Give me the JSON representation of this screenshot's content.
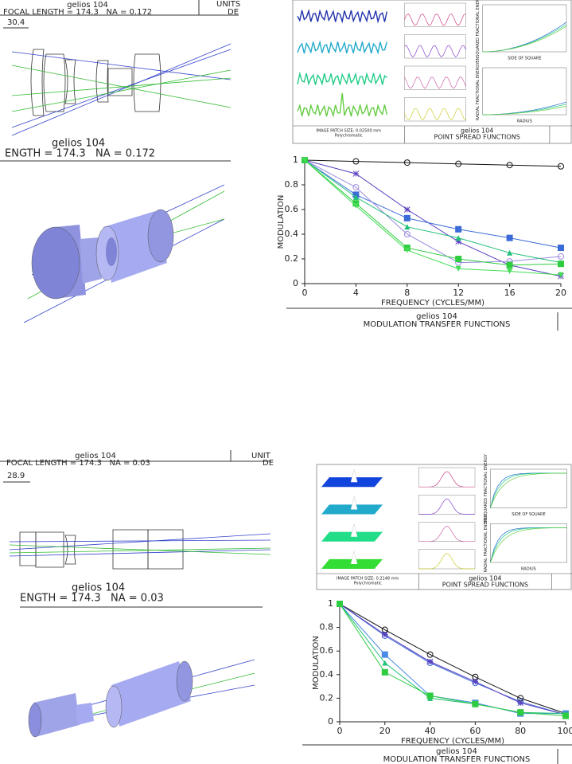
{
  "layouts": [
    {
      "header_title": "gelios 104",
      "header_focal": "FOCAL LENGTH = 174.3   NA = 0.172",
      "units": "UNITS",
      "des": "DE",
      "scale": "30.4",
      "lens_title": "gelios 104",
      "lens_focal": "ENGTH = 174.3   NA = 0.172",
      "psf": {
        "patch": "IMAGE PATCH SIZE: 0.02500 mm",
        "poly": "Polychromatic",
        "title": "gelios 104",
        "name": "POINT SPREAD FUNCTIONS",
        "ens": "ENSQUARED FRACTIONAL ENERGY",
        "side": "SIDE OF SQUARE",
        "rad": "RADIAL FRACTIONAL ENERGY",
        "radius": "RADIUS"
      }
    },
    {
      "header_title": "gelios 104",
      "header_focal": "FOCAL LENGTH = 174.3   NA = 0.03",
      "units": "UNIT",
      "des": "DE",
      "scale": "28.9",
      "lens_title": "gelios 104",
      "lens_focal": "ENGTH = 174.3   NA = 0.03",
      "psf": {
        "patch": "IMAGE PATCH SIZE: 0.2148 mm",
        "poly": "Polychromatic",
        "title": "gelios 104",
        "name": "POINT SPREAD FUNCTIONS",
        "ens": "ENSQUARED FRACTIONAL ENERGY",
        "side": "SIDE OF SQUARE",
        "rad": "RADIAL FRACTIONAL ENERGY",
        "radius": "RADIUS"
      }
    }
  ],
  "chart_data": [
    {
      "type": "line",
      "title": "gelios 104",
      "subtitle": "MODULATION TRANSFER FUNCTIONS",
      "x_label": "FREQUENCY (CYCLES/MM)",
      "y_label": "MODULATION",
      "x": [
        0,
        4,
        8,
        12,
        16,
        20
      ],
      "xlim": [
        0,
        20
      ],
      "xticks": [
        0,
        4,
        8,
        12,
        16,
        20
      ],
      "ylim": [
        0,
        1
      ],
      "yticks": [
        0,
        0.2,
        0.4,
        0.6,
        0.8,
        1
      ],
      "series": [
        {
          "color": "#111111",
          "marker": "circle",
          "values": [
            1,
            0.99,
            0.98,
            0.97,
            0.96,
            0.95
          ]
        },
        {
          "color": "#5a3fc0",
          "marker": "star",
          "values": [
            1,
            0.89,
            0.6,
            0.34,
            0.15,
            0.06
          ]
        },
        {
          "color": "#3a6bd6",
          "marker": "square",
          "values": [
            1,
            0.72,
            0.53,
            0.44,
            0.37,
            0.29
          ]
        },
        {
          "color": "#9a8ae0",
          "marker": "circle",
          "values": [
            1,
            0.78,
            0.4,
            0.17,
            0.18,
            0.22
          ]
        },
        {
          "color": "#22c07a",
          "marker": "triangle",
          "values": [
            1,
            0.7,
            0.46,
            0.37,
            0.25,
            0.17
          ]
        },
        {
          "color": "#2ecc40",
          "marker": "square",
          "values": [
            1,
            0.65,
            0.29,
            0.2,
            0.15,
            0.16
          ]
        },
        {
          "color": "#44dd55",
          "marker": "triangle-down",
          "values": [
            1,
            0.63,
            0.27,
            0.12,
            0.1,
            0.07
          ]
        }
      ]
    },
    {
      "type": "line",
      "title": "gelios 104",
      "subtitle": "MODULATION TRANSFER FUNCTIONS",
      "x_label": "FREQUENCY (CYCLES/MM)",
      "y_label": "MODULATION",
      "x": [
        0,
        20,
        40,
        60,
        80,
        100
      ],
      "xlim": [
        0,
        100
      ],
      "xticks": [
        0,
        20,
        40,
        60,
        80,
        100
      ],
      "ylim": [
        0,
        1
      ],
      "yticks": [
        0,
        0.2,
        0.4,
        0.6,
        0.8,
        1
      ],
      "series": [
        {
          "color": "#111111",
          "marker": "circle",
          "values": [
            1,
            0.78,
            0.57,
            0.38,
            0.2,
            0.07
          ]
        },
        {
          "color": "#3a6bd6",
          "marker": "circle",
          "values": [
            1,
            0.73,
            0.5,
            0.33,
            0.17,
            0.06
          ]
        },
        {
          "color": "#5a3fc0",
          "marker": "star",
          "values": [
            1,
            0.74,
            0.51,
            0.34,
            0.16,
            0.06
          ]
        },
        {
          "color": "#4a8be6",
          "marker": "square",
          "values": [
            1,
            0.57,
            0.22,
            0.16,
            0.07,
            0.07
          ]
        },
        {
          "color": "#22c07a",
          "marker": "triangle",
          "values": [
            1,
            0.5,
            0.2,
            0.15,
            0.08,
            0.07
          ]
        },
        {
          "color": "#2ecc40",
          "marker": "square",
          "values": [
            1,
            0.42,
            0.22,
            0.15,
            0.08,
            0.05
          ]
        }
      ]
    }
  ]
}
